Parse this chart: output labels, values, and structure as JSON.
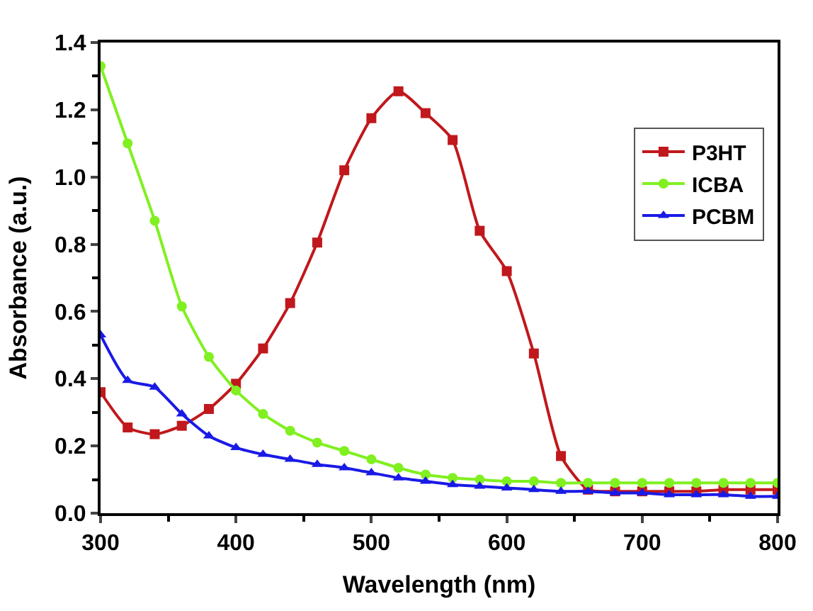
{
  "chart_data": {
    "type": "line",
    "xlabel": "Wavelength (nm)",
    "ylabel": "Absorbance (a.u.)",
    "x": [
      300,
      320,
      340,
      360,
      380,
      400,
      420,
      440,
      460,
      480,
      500,
      520,
      540,
      560,
      580,
      600,
      620,
      640,
      660,
      680,
      700,
      720,
      740,
      760,
      780,
      800
    ],
    "series": [
      {
        "name": "P3HT",
        "color": "#c0181c",
        "marker": "square",
        "values": [
          0.36,
          0.255,
          0.235,
          0.26,
          0.31,
          0.385,
          0.49,
          0.625,
          0.805,
          1.02,
          1.175,
          1.255,
          1.19,
          1.11,
          0.84,
          0.72,
          0.475,
          0.17,
          0.07,
          0.065,
          0.065,
          0.065,
          0.065,
          0.07,
          0.07,
          0.07
        ]
      },
      {
        "name": "ICBA",
        "color": "#80f020",
        "marker": "circle",
        "values": [
          1.33,
          1.1,
          0.87,
          0.615,
          0.465,
          0.365,
          0.295,
          0.245,
          0.21,
          0.185,
          0.16,
          0.135,
          0.115,
          0.105,
          0.1,
          0.095,
          0.095,
          0.09,
          0.09,
          0.09,
          0.09,
          0.09,
          0.09,
          0.09,
          0.09,
          0.09
        ]
      },
      {
        "name": "PCBM",
        "color": "#1a1ae6",
        "marker": "triangle",
        "values": [
          0.53,
          0.395,
          0.375,
          0.295,
          0.23,
          0.195,
          0.175,
          0.16,
          0.145,
          0.135,
          0.12,
          0.105,
          0.095,
          0.085,
          0.08,
          0.075,
          0.07,
          0.065,
          0.065,
          0.06,
          0.06,
          0.055,
          0.055,
          0.055,
          0.05,
          0.05
        ]
      }
    ],
    "xlim": [
      300,
      800
    ],
    "xticks": [
      300,
      400,
      500,
      600,
      700,
      800
    ],
    "ylim": [
      0,
      1.4
    ],
    "yticks": [
      {
        "value": 0,
        "label": "0.0"
      },
      {
        "value": 0.2,
        "label": "0.2"
      },
      {
        "value": 0.4,
        "label": "0.4"
      },
      {
        "value": 0.6,
        "label": "0.6"
      },
      {
        "value": 0.8,
        "label": "0.8"
      },
      {
        "value": 1,
        "label": "1.0"
      },
      {
        "value": 1.2,
        "label": "1.2"
      },
      {
        "value": 1.4,
        "label": "1.4"
      }
    ],
    "legend": "top right",
    "line_style": "solid"
  }
}
